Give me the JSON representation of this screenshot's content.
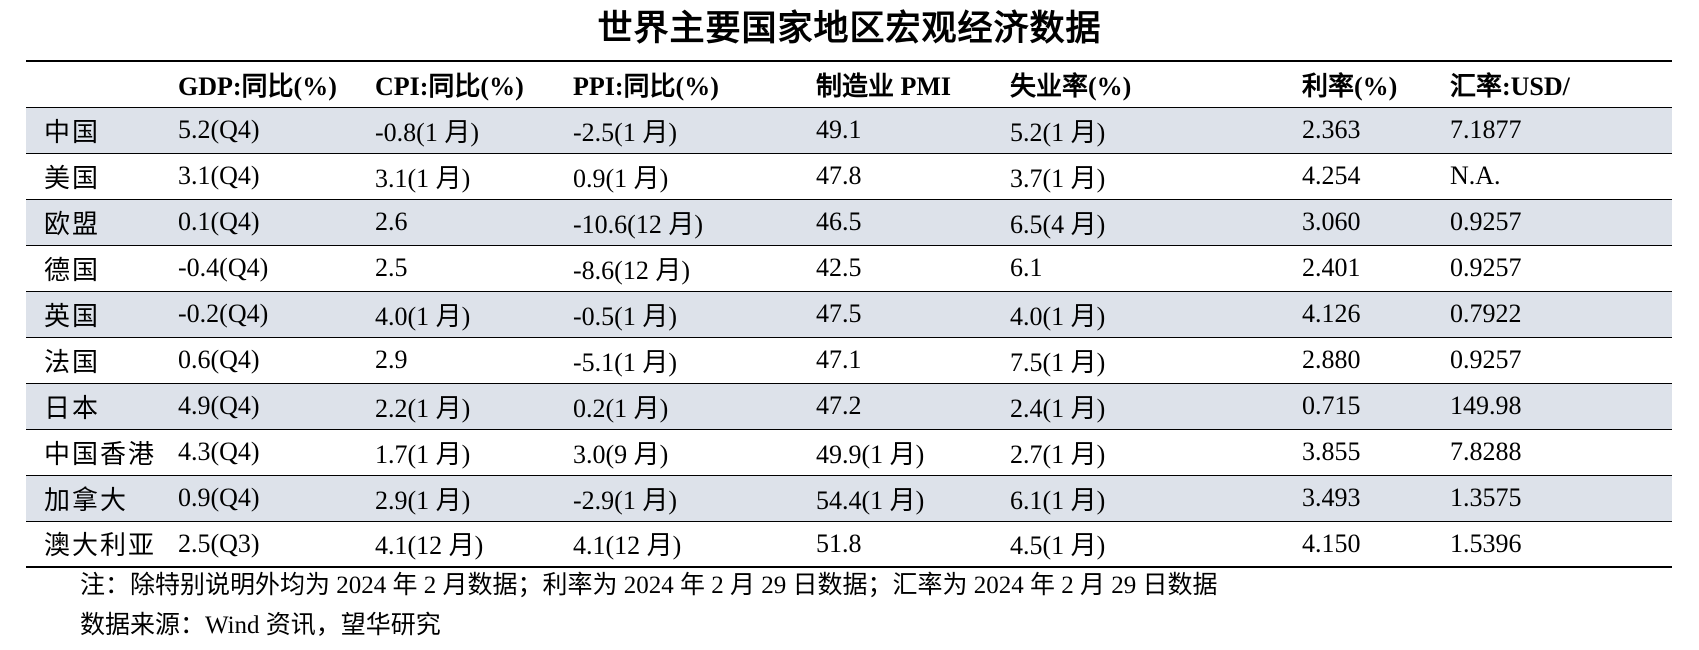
{
  "title": "世界主要国家地区宏观经济数据",
  "table": {
    "headers": [
      "",
      "GDP:同比(%)",
      "CPI:同比(%)",
      "PPI:同比(%)",
      "制造业 PMI",
      "失业率(%)",
      "利率(%)",
      "汇率:USD/"
    ],
    "rows": [
      [
        "中国",
        "5.2(Q4)",
        "-0.8(1 月)",
        "-2.5(1 月)",
        "49.1",
        "5.2(1 月)",
        "2.363",
        "7.1877"
      ],
      [
        "美国",
        "3.1(Q4)",
        "3.1(1 月)",
        "0.9(1 月)",
        "47.8",
        "3.7(1 月)",
        "4.254",
        "N.A."
      ],
      [
        "欧盟",
        "0.1(Q4)",
        "2.6",
        "-10.6(12 月)",
        "46.5",
        "6.5(4 月)",
        "3.060",
        "0.9257"
      ],
      [
        "德国",
        "-0.4(Q4)",
        "2.5",
        "-8.6(12 月)",
        "42.5",
        "6.1",
        "2.401",
        "0.9257"
      ],
      [
        "英国",
        "-0.2(Q4)",
        "4.0(1 月)",
        "-0.5(1 月)",
        "47.5",
        "4.0(1 月)",
        "4.126",
        "0.7922"
      ],
      [
        "法国",
        "0.6(Q4)",
        "2.9",
        "-5.1(1 月)",
        "47.1",
        "7.5(1 月)",
        "2.880",
        "0.9257"
      ],
      [
        "日本",
        "4.9(Q4)",
        "2.2(1 月)",
        "0.2(1 月)",
        "47.2",
        "2.4(1 月)",
        "0.715",
        "149.98"
      ],
      [
        "中国香港",
        "4.3(Q4)",
        "1.7(1 月)",
        "3.0(9 月)",
        "49.9(1 月)",
        "2.7(1 月)",
        "3.855",
        "7.8288"
      ],
      [
        "加拿大",
        "0.9(Q4)",
        "2.9(1 月)",
        "-2.9(1 月)",
        "54.4(1 月)",
        "6.1(1 月)",
        "3.493",
        "1.3575"
      ],
      [
        "澳大利亚",
        "2.5(Q3)",
        "4.1(12 月)",
        "4.1(12 月)",
        "51.8",
        "4.5(1 月)",
        "4.150",
        "1.5396"
      ]
    ]
  },
  "notes": {
    "note": "注：除特别说明外均为 2024 年 2 月数据；利率为 2024 年 2 月 29 日数据；汇率为 2024 年 2 月 29 日数据",
    "source": "数据来源：Wind 资讯，望华研究"
  },
  "colors": {
    "row_shading": "#dde2ea",
    "rule": "#000000"
  }
}
